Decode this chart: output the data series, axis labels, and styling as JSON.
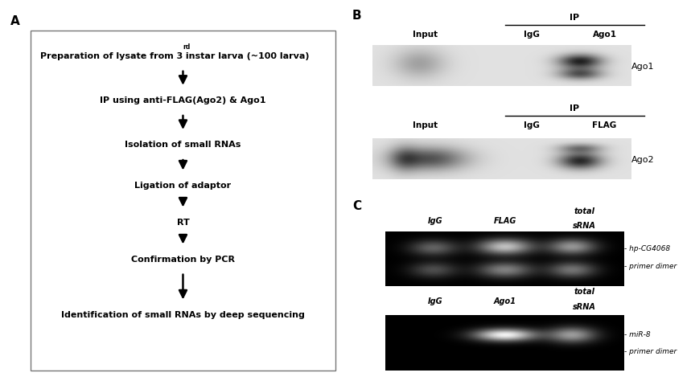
{
  "panel_A_label": "A",
  "panel_B_label": "B",
  "panel_C_label": "C",
  "panel_A_steps": [
    "Preparation of lysate from 3$^{rd}$ instar larva (~100 larva)",
    "IP using anti-FLAG(Ago2) & Ago1",
    "Isolation of small RNAs",
    "Ligation of adaptor",
    "RT",
    "Confirmation by PCR",
    "Identification of small RNAs by deep sequencing"
  ],
  "panel_B_top_cols": [
    "Input",
    "IgG",
    "Ago1"
  ],
  "panel_B_top_label_right": "Ago1",
  "panel_B_bot_cols": [
    "Input",
    "IgG",
    "FLAG"
  ],
  "panel_B_bot_label_right": "Ago2",
  "panel_C_top_right1": "- hp-CG4068",
  "panel_C_top_right2": "- primer dimer",
  "panel_C_bot_right1": "- miR-8",
  "panel_C_bot_right2": "- primer dimer",
  "bg_color": "#ffffff",
  "text_color": "#000000"
}
